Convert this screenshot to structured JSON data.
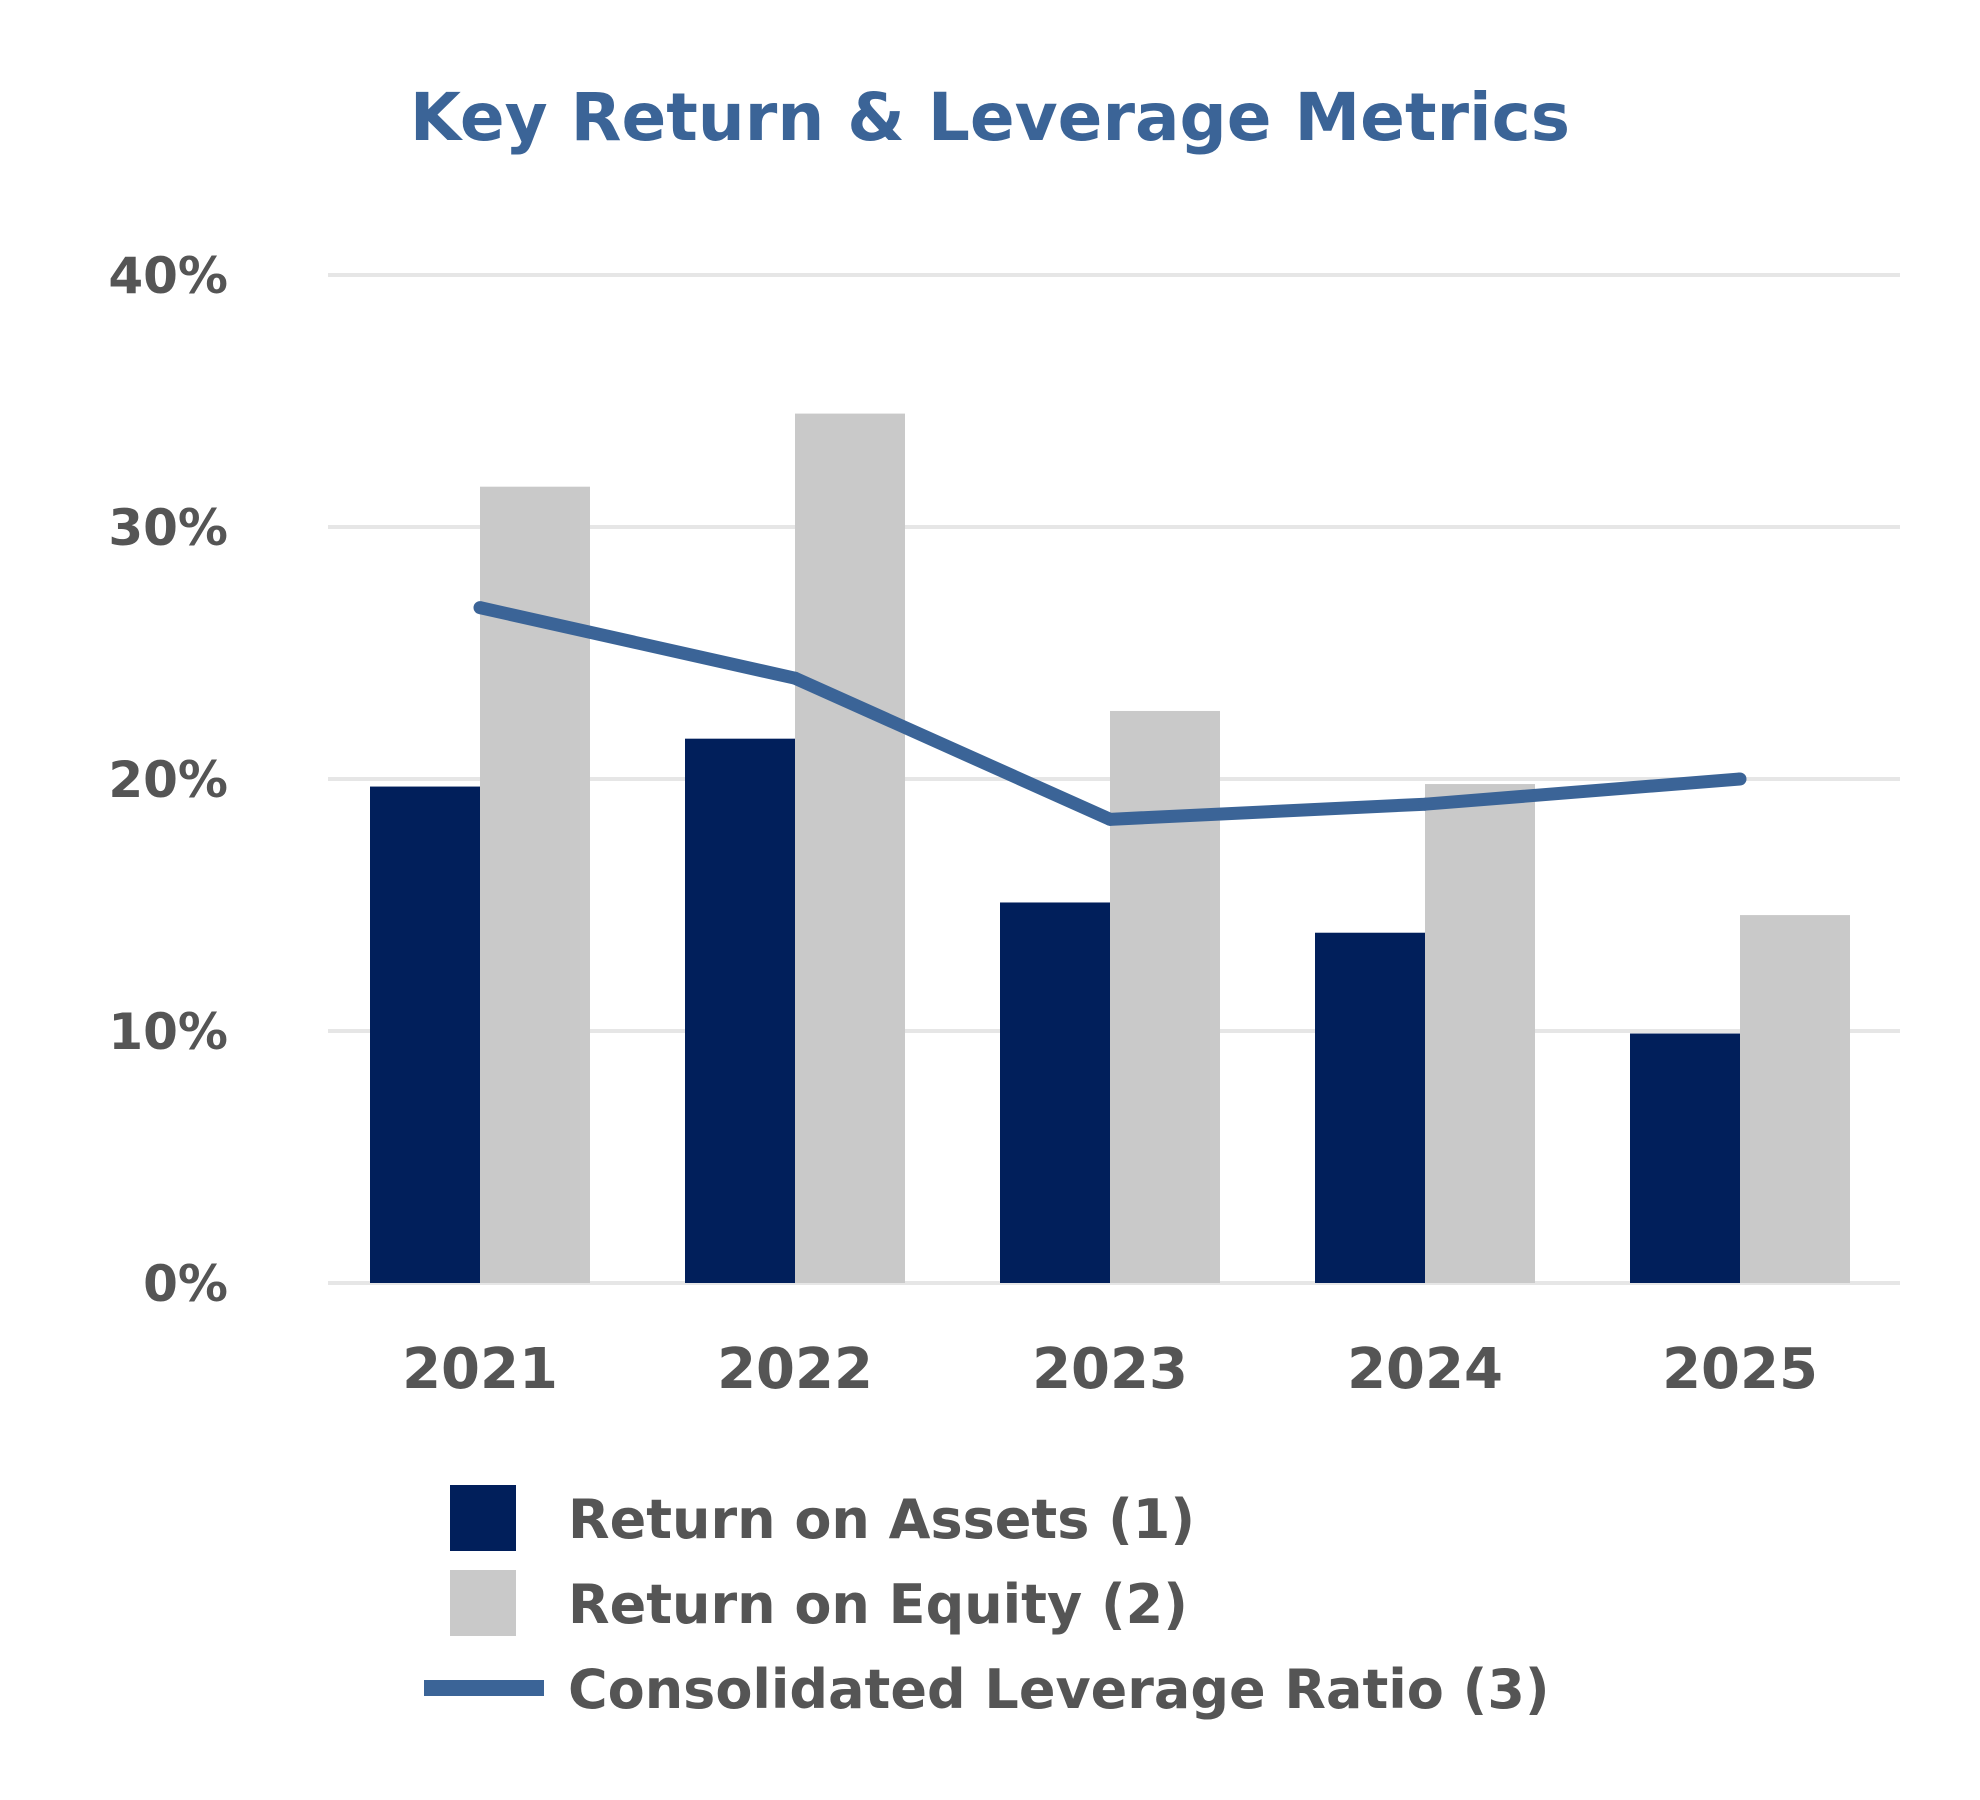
{
  "chart_data": {
    "type": "bar",
    "title": "Key Return & Leverage Metrics",
    "categories": [
      "2021",
      "2022",
      "2023",
      "2024",
      "2025"
    ],
    "series": [
      {
        "name": "Return on Assets (1)",
        "kind": "bar",
        "color": "#011f5b",
        "values": [
          19.7,
          21.6,
          15.1,
          13.9,
          9.9
        ]
      },
      {
        "name": "Return on Equity (2)",
        "kind": "bar",
        "color": "#c9c9c9",
        "values": [
          31.6,
          34.5,
          22.7,
          19.8,
          14.6
        ]
      },
      {
        "name": "Consolidated Leverage Ratio (3)",
        "kind": "line",
        "color": "#3b6497",
        "values": [
          26.8,
          24.0,
          18.4,
          19.0,
          20.0
        ]
      }
    ],
    "ylim": [
      0,
      40
    ],
    "yticks": [
      0,
      10,
      20,
      30,
      40
    ],
    "ytick_labels": [
      "0%",
      "10%",
      "20%",
      "30%",
      "40%"
    ],
    "grid": true,
    "legend_position": "bottom",
    "xlabel": "",
    "ylabel": ""
  },
  "colors": {
    "title": "#3b6497",
    "grid": "#e6e6e6",
    "text": "#555555"
  }
}
